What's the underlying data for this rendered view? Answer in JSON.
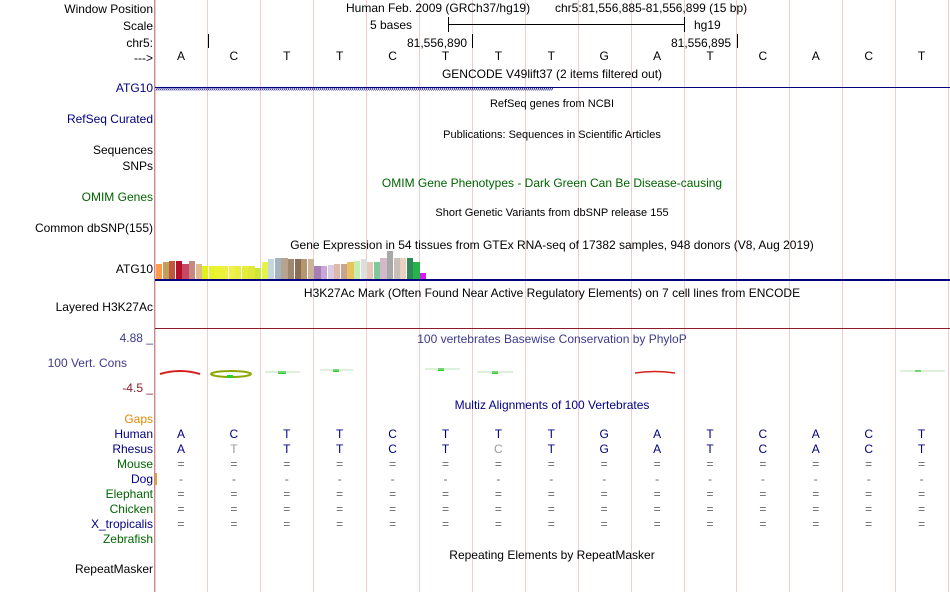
{
  "header": {
    "window_position_label": "Window Position",
    "scale_label": "Scale",
    "chrom_label": "chr5:",
    "arrow_label": "--->",
    "assembly_text": "Human Feb. 2009 (GRCh37/hg19)",
    "position_text": "chr5:81,556,885-81,556,899 (15 bp)",
    "scale_text": "5 bases",
    "scale_db": "hg19",
    "tick1": "81,556,890",
    "tick2": "81,556,895",
    "sequence": [
      "A",
      "C",
      "T",
      "T",
      "C",
      "T",
      "T",
      "T",
      "G",
      "A",
      "T",
      "C",
      "A",
      "C",
      "T"
    ]
  },
  "tracks": {
    "gencode": {
      "title": "GENCODE V49lift37 (2 items filtered out)",
      "label": "ATG10"
    },
    "refseq": {
      "title": "RefSeq genes from NCBI",
      "label": "RefSeq Curated"
    },
    "publications": {
      "title": "Publications: Sequences in Scientific Articles",
      "label1": "Sequences",
      "label2": "SNPs"
    },
    "omim": {
      "title": "OMIM Gene Phenotypes - Dark Green Can Be Disease-causing",
      "label": "OMIM Genes"
    },
    "dbsnp": {
      "title": "Short Genetic Variants from dbSNP release 155",
      "label": "Common dbSNP(155)"
    },
    "gtex": {
      "title": "Gene Expression in 54 tissues from GTEx RNA-seq of 17382 samples, 948 donors (V8, Aug 2019)",
      "label": "ATG10"
    },
    "h3k27ac": {
      "title": "H3K27Ac Mark (Often Found Near Active Regulatory Elements) on 7 cell lines from ENCODE",
      "label": "Layered H3K27Ac"
    },
    "phylop": {
      "title": "100 vertebrates Basewise Conservation by PhyloP",
      "label": "100 Vert. Cons",
      "max": "4.88 _",
      "min": "-4.5 _"
    },
    "gaps": {
      "label": "Gaps"
    },
    "multiz": {
      "title": "Multiz Alignments of 100 Vertebrates"
    },
    "repeatmasker": {
      "title": "Repeating Elements by RepeatMasker",
      "label": "RepeatMasker"
    }
  },
  "species": [
    {
      "name": "Human",
      "color": "#000080",
      "row": [
        "A",
        "C",
        "T",
        "T",
        "C",
        "T",
        "T",
        "T",
        "G",
        "A",
        "T",
        "C",
        "A",
        "C",
        "T"
      ]
    },
    {
      "name": "Rhesus",
      "color": "#000080",
      "row": [
        "A",
        "T",
        "T",
        "T",
        "C",
        "T",
        "C",
        "T",
        "G",
        "A",
        "T",
        "C",
        "A",
        "C",
        "T"
      ]
    },
    {
      "name": "Mouse",
      "color": "#006400",
      "row": [
        "=",
        "=",
        "=",
        "=",
        "=",
        "=",
        "=",
        "=",
        "=",
        "=",
        "=",
        "=",
        "=",
        "=",
        "="
      ]
    },
    {
      "name": "Dog",
      "color": "#000080",
      "row": [
        "-",
        "-",
        "-",
        "-",
        "-",
        "-",
        "-",
        "-",
        "-",
        "-",
        "-",
        "-",
        "-",
        "-",
        "-"
      ]
    },
    {
      "name": "Elephant",
      "color": "#006400",
      "row": [
        "=",
        "=",
        "=",
        "=",
        "=",
        "=",
        "=",
        "=",
        "=",
        "=",
        "=",
        "=",
        "=",
        "=",
        "="
      ]
    },
    {
      "name": "Chicken",
      "color": "#006400",
      "row": [
        "=",
        "=",
        "=",
        "=",
        "=",
        "=",
        "=",
        "=",
        "=",
        "=",
        "=",
        "=",
        "=",
        "=",
        "="
      ]
    },
    {
      "name": "X_tropicalis",
      "color": "#000080",
      "row": [
        "=",
        "=",
        "=",
        "=",
        "=",
        "=",
        "=",
        "=",
        "=",
        "=",
        "=",
        "=",
        "=",
        "=",
        "="
      ]
    },
    {
      "name": "Zebrafish",
      "color": "#006400",
      "row": []
    }
  ],
  "gtex_colors": [
    "#ff9a4d",
    "#c3a05a",
    "#c0563d",
    "#b40f2b",
    "#c64864",
    "#c28a80",
    "#dcbb8c",
    "#e3f020",
    "#e8f22a",
    "#ecf234",
    "#eef040",
    "#f0f048",
    "#eaee44",
    "#e6ec3c",
    "#e0e838",
    "#cce63a",
    "#e3f34d",
    "#c4d6e0",
    "#a3b3c2",
    "#b7a38e",
    "#a08770",
    "#8b6e56",
    "#b5976f",
    "#c9b49b",
    "#a67fb6",
    "#c8a6d8",
    "#dccbe0",
    "#e0b8ab",
    "#c9a590",
    "#e8c35e",
    "#c3f0b0",
    "#dedede",
    "#e6c8b8",
    "#7dc89c",
    "#d2b8c8",
    "#a8a8a8",
    "#c8c0b8",
    "#e8d1c0",
    "#2e8b57",
    "#26b34a",
    "#d21ef0"
  ],
  "gtex_values": [
    0.55,
    0.6,
    0.65,
    0.65,
    0.55,
    0.65,
    0.55,
    0.45,
    0.45,
    0.45,
    0.45,
    0.45,
    0.45,
    0.45,
    0.45,
    0.4,
    0.6,
    0.7,
    0.75,
    0.75,
    0.7,
    0.7,
    0.7,
    0.7,
    0.45,
    0.45,
    0.5,
    0.55,
    0.55,
    0.6,
    0.65,
    0.7,
    0.6,
    0.6,
    0.75,
    1.0,
    0.75,
    0.75,
    0.75,
    0.6,
    0.2
  ]
}
